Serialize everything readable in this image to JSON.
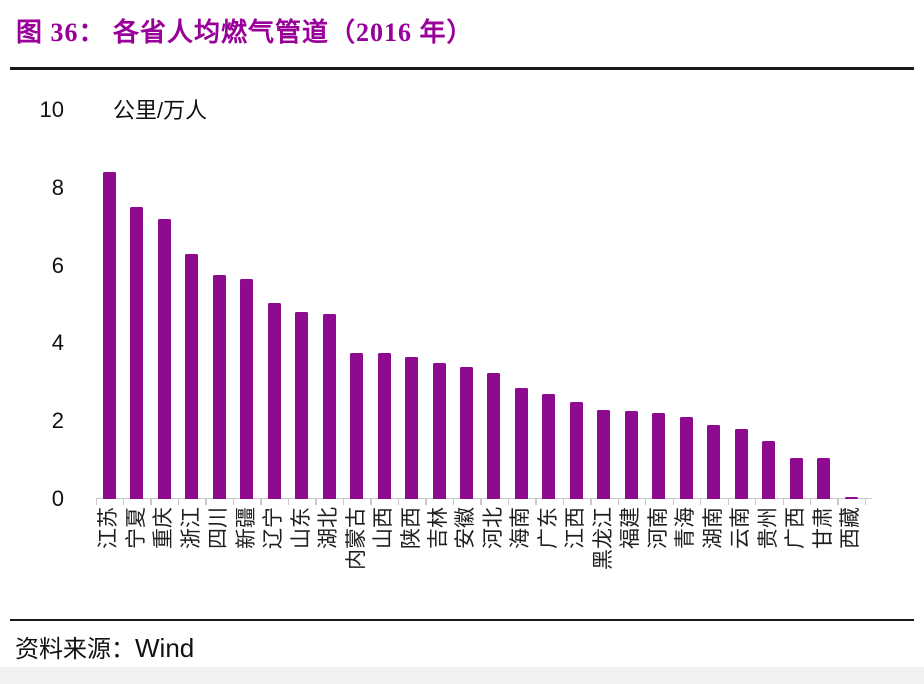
{
  "figure": {
    "title": "图 36：  各省人均燃气管道（2016 年）",
    "source_prefix": "资料来源：",
    "source_name": "Wind"
  },
  "colors": {
    "bar": "#8E0A8E",
    "title": "#990099",
    "axis": "#C9C7C7",
    "footer_strip": "#F2F2F2"
  },
  "chart_data": {
    "type": "bar",
    "title": "各省人均燃气管道（2016 年）",
    "unit_label": "公里/万人",
    "xlabel": "",
    "ylabel": "公里/万人",
    "ylim": [
      0,
      10
    ],
    "yticks": [
      0,
      2,
      4,
      6,
      8,
      10
    ],
    "grid": false,
    "legend": "none",
    "bar_color": "#8E0A8E",
    "categories": [
      "江苏",
      "宁夏",
      "重庆",
      "浙江",
      "四川",
      "新疆",
      "辽宁",
      "山东",
      "湖北",
      "内蒙古",
      "山西",
      "陕西",
      "吉林",
      "安徽",
      "河北",
      "海南",
      "广东",
      "江西",
      "黑龙江",
      "福建",
      "河南",
      "青海",
      "湖南",
      "云南",
      "贵州",
      "广西",
      "甘肃",
      "西藏"
    ],
    "values": [
      8.4,
      7.5,
      7.2,
      6.3,
      5.75,
      5.65,
      5.05,
      4.8,
      4.75,
      3.75,
      3.75,
      3.65,
      3.5,
      3.4,
      3.25,
      2.85,
      2.7,
      2.5,
      2.3,
      2.25,
      2.2,
      2.1,
      1.9,
      1.8,
      1.5,
      1.05,
      1.05,
      0.05
    ]
  }
}
